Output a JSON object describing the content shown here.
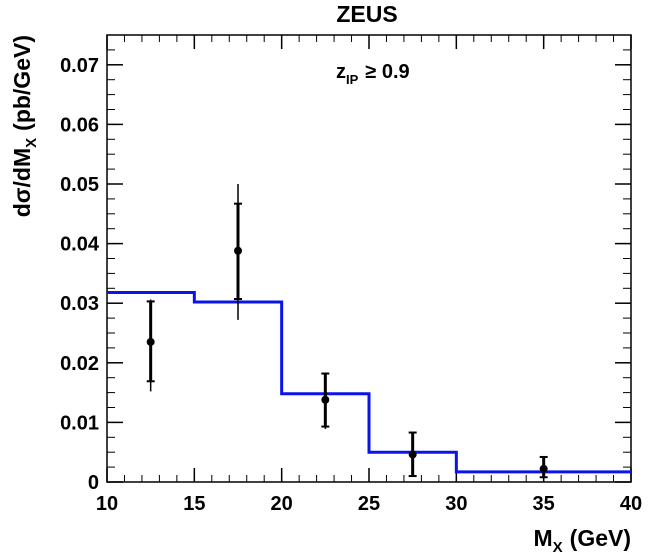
{
  "chart_data": {
    "type": "line",
    "title": "ZEUS",
    "annotation": {
      "main": "z",
      "sub": "IP",
      "rest": "≥ 0.9"
    },
    "xlabel": {
      "main": "M",
      "sub": "X",
      "rest": "(GeV)"
    },
    "ylabel": {
      "pre": "dσ/dM",
      "sub": "X",
      "rest": "(pb/GeV)"
    },
    "xlim": [
      10,
      40
    ],
    "ylim": [
      0,
      0.075
    ],
    "x_ticks": [
      {
        "value": 10,
        "label": "10"
      },
      {
        "value": 15,
        "label": "15"
      },
      {
        "value": 20,
        "label": "20"
      },
      {
        "value": 25,
        "label": "25"
      },
      {
        "value": 30,
        "label": "30"
      },
      {
        "value": 35,
        "label": "35"
      },
      {
        "value": 40,
        "label": "40"
      }
    ],
    "y_ticks": [
      {
        "value": 0,
        "label": "0"
      },
      {
        "value": 0.01,
        "label": "0.01"
      },
      {
        "value": 0.02,
        "label": "0.02"
      },
      {
        "value": 0.03,
        "label": "0.03"
      },
      {
        "value": 0.04,
        "label": "0.04"
      },
      {
        "value": 0.05,
        "label": "0.05"
      },
      {
        "value": 0.06,
        "label": "0.06"
      },
      {
        "value": 0.07,
        "label": "0.07"
      }
    ],
    "grid": false,
    "series": [
      {
        "kind": "data",
        "color": "#000000",
        "points": [
          {
            "x": 12.5,
            "y": 0.0235,
            "stat_low": 0.0169,
            "stat_high": 0.0303,
            "tot_low": 0.0152,
            "tot_high": 0.0306
          },
          {
            "x": 17.5,
            "y": 0.0388,
            "stat_low": 0.0307,
            "stat_high": 0.0467,
            "tot_low": 0.0272,
            "tot_high": 0.05
          },
          {
            "x": 22.5,
            "y": 0.0138,
            "stat_low": 0.0093,
            "stat_high": 0.0182,
            "tot_low": 0.0089,
            "tot_high": 0.0182
          },
          {
            "x": 27.5,
            "y": 0.0046,
            "stat_low": 0.001,
            "stat_high": 0.0083,
            "tot_low": 0.0009,
            "tot_high": 0.0083
          },
          {
            "x": 35,
            "y": 0.0022,
            "stat_low": 0.0008,
            "stat_high": 0.0042,
            "tot_low": 0.0005,
            "tot_high": 0.0043
          }
        ]
      },
      {
        "kind": "histogram",
        "color": "#0a14e6",
        "bins": [
          {
            "x0": 10,
            "x1": 15,
            "y": 0.0318
          },
          {
            "x0": 15,
            "x1": 20,
            "y": 0.0302
          },
          {
            "x0": 20,
            "x1": 25,
            "y": 0.0148
          },
          {
            "x0": 25,
            "x1": 30,
            "y": 0.005
          },
          {
            "x0": 30,
            "x1": 40,
            "y": 0.0017
          }
        ]
      }
    ]
  }
}
